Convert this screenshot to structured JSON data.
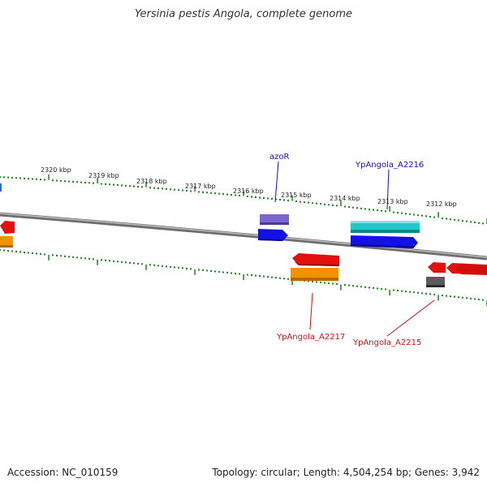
{
  "title": "Yersinia pestis Angola, complete genome",
  "footer": {
    "accession": "Accession: NC_010159",
    "summary": "Topology: circular; Length: 4,504,254 bp; Genes: 3,942"
  },
  "tick_labels": [
    "2320 kbp",
    "2319 kbp",
    "2318 kbp",
    "2317 kbp",
    "2316 kbp",
    "2315 kbp",
    "2314 kbp",
    "2313 kbp",
    "2312 kbp"
  ],
  "gene_labels": {
    "azoR": "azoR",
    "a2216": "YpAngola_A2216",
    "a2217": "YpAngola_A2217",
    "a2215": "YpAngola_A2215"
  },
  "colors": {
    "backbone": "#888888",
    "tick": "#1a8a1a",
    "forward_label": "#1010c0",
    "reverse_label": "#d01010",
    "feature_red": "#e01010",
    "feature_orange": "#f08a00",
    "feature_blue": "#1010e0",
    "feature_lavender": "#7060c0",
    "feature_cyan": "#20c0c0",
    "feature_gray": "#555555"
  }
}
